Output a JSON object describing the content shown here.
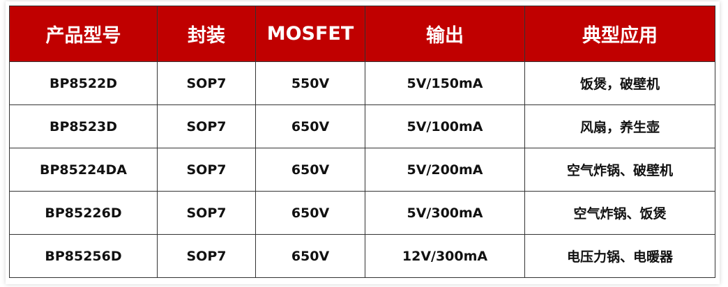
{
  "header_color": "#c00000",
  "columns": [
    "产品型号",
    "封装",
    "MOSFET",
    "输出",
    "典型应用"
  ],
  "rows": [
    [
      "BP8522D",
      "SOP7",
      "550V",
      "5V/150mA",
      "饭煲，破壁机"
    ],
    [
      "BP8523D",
      "SOP7",
      "650V",
      "5V/100mA",
      "风扇，养生壶"
    ],
    [
      "BP85224DA",
      "SOP7",
      "650V",
      "5V/200mA",
      "空气炸锅、破壁机"
    ],
    [
      "BP85226D",
      "SOP7",
      "650V",
      "5V/300mA",
      "空气炸锅、饭煲"
    ],
    [
      "BP85256D",
      "SOP7",
      "650V",
      "12V/300mA",
      "电压力锅、电暖器"
    ]
  ]
}
